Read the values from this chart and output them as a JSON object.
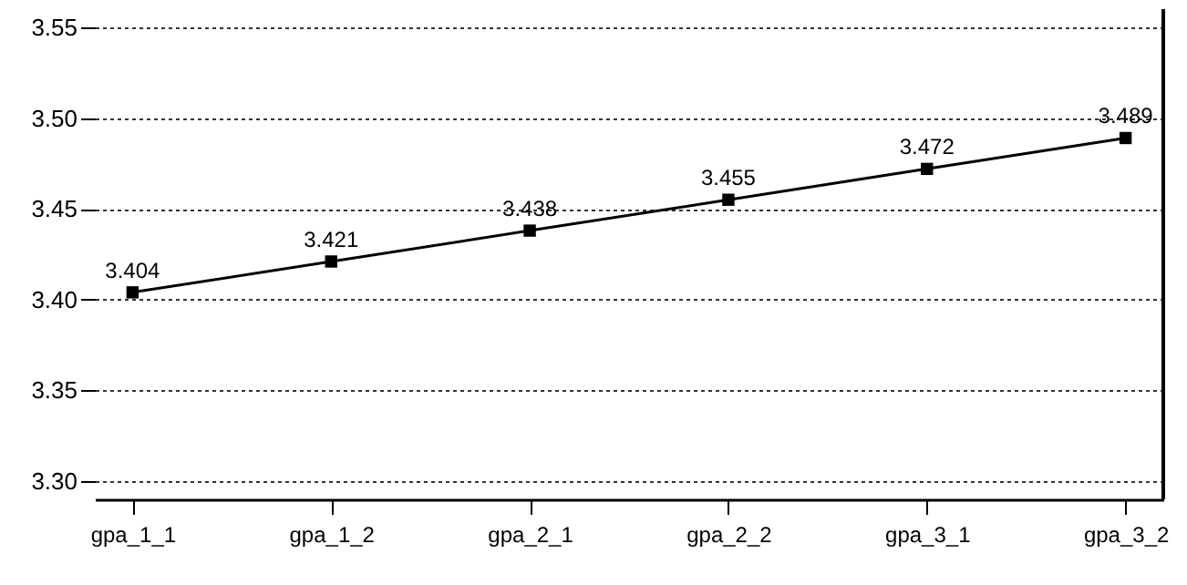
{
  "chart_data": {
    "type": "line",
    "categories": [
      "gpa_1_1",
      "gpa_1_2",
      "gpa_2_1",
      "gpa_2_2",
      "gpa_3_1",
      "gpa_3_2"
    ],
    "series": [
      {
        "color": "#000000",
        "values": [
          3.404,
          3.421,
          3.438,
          3.455,
          3.472,
          3.489
        ]
      }
    ],
    "ylim": [
      3.29,
      3.56
    ],
    "yticks": [
      {
        "value": 3.3,
        "label": "3.30"
      },
      3.35,
      {
        "value": 3.4,
        "label": "3.40"
      },
      3.45,
      {
        "value": 3.5,
        "label": "3.50"
      },
      3.55
    ],
    "grid": "y",
    "marker": "square",
    "line_style": "solid",
    "data_labels": true
  }
}
